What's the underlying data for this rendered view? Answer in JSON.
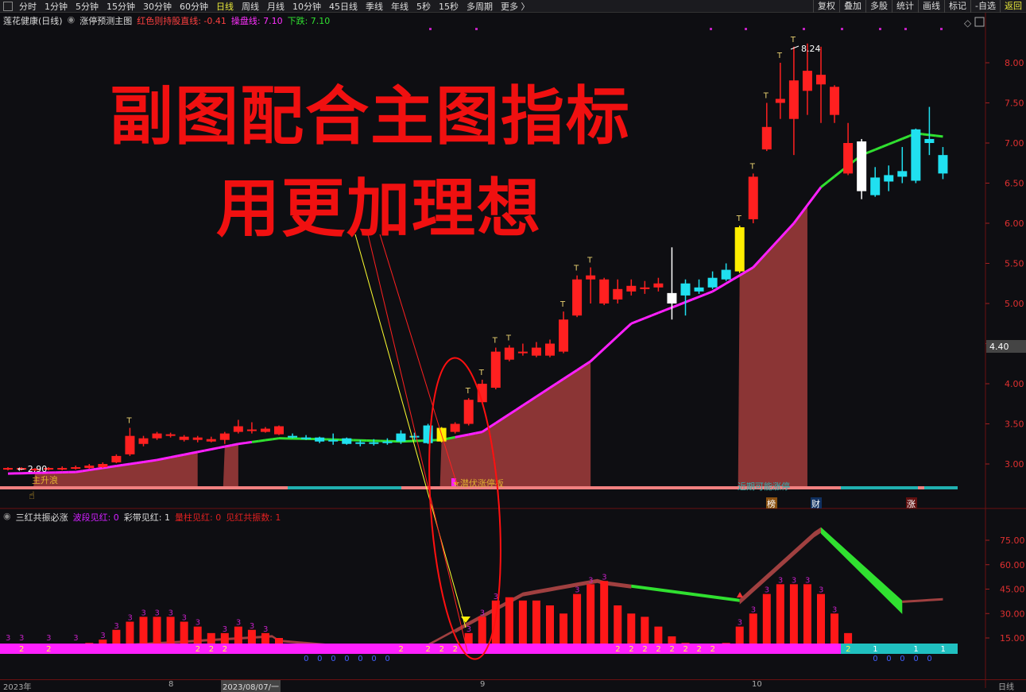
{
  "toolbar": {
    "timeframes": [
      "分时",
      "1分钟",
      "5分钟",
      "15分钟",
      "30分钟",
      "60分钟",
      "日线",
      "周线",
      "月线",
      "10分钟",
      "45日线",
      "季线",
      "年线",
      "5秒",
      "15秒",
      "多周期",
      "更多 〉"
    ],
    "active": "日线",
    "right_buttons": [
      "复权",
      "叠加",
      "多股",
      "统计",
      "画线",
      "标记",
      "-自选",
      "返回"
    ]
  },
  "info": {
    "stock": "莲花健康(日线)",
    "indicator": "涨停预测主图",
    "red_label": "红色则持股直线: -0.41",
    "magenta_label": "操盘线: 7.10",
    "green_label": "下跌: 7.10"
  },
  "sub_info": {
    "name": "三红共振必涨",
    "wave": "波段见红: 0",
    "band": "彩带见红: 1",
    "volume": "量柱见红: 0",
    "count": "见红共振数: 1"
  },
  "overlay": {
    "line1": "副图配合主图指标",
    "line2": "用更加理想"
  },
  "annotations": {
    "low_price": "← 2.90",
    "high_price": "8.24",
    "main_wave": "主升浪",
    "hidden_limit": "★潜伏涨停板",
    "recent_limit": "近期可能涨停",
    "badges": [
      "榜",
      "财",
      "涨"
    ],
    "current_price": "4.40",
    "t_mark": "T"
  },
  "colors": {
    "up": "#ff2020",
    "down": "#20e0f0",
    "magenta": "#ff20ff",
    "green": "#30e030",
    "fill": "#8b3535",
    "yellow": "#ffee00"
  },
  "chart_data": [
    {
      "type": "candlestick",
      "ylim": [
        2.7,
        8.35
      ],
      "yticks": [
        "8.00",
        "7.50",
        "7.00",
        "6.50",
        "6.00",
        "5.50",
        "5.00",
        "4.50",
        "4.00",
        "3.50",
        "3.00"
      ],
      "candles": [
        [
          2.93,
          2.95,
          2.96,
          2.92,
          "r"
        ],
        [
          2.93,
          2.95,
          2.96,
          2.92,
          "r"
        ],
        [
          2.92,
          2.94,
          2.95,
          2.91,
          "r"
        ],
        [
          2.93,
          2.95,
          2.96,
          2.92,
          "r"
        ],
        [
          2.93,
          2.95,
          2.97,
          2.92,
          "r"
        ],
        [
          2.94,
          2.96,
          2.98,
          2.93,
          "r"
        ],
        [
          2.95,
          2.98,
          3.0,
          2.94,
          "r"
        ],
        [
          2.96,
          3.0,
          3.02,
          2.95,
          "r"
        ],
        [
          3.02,
          3.1,
          3.12,
          3.01,
          "r"
        ],
        [
          3.12,
          3.35,
          3.45,
          3.1,
          "r"
        ],
        [
          3.25,
          3.32,
          3.35,
          3.22,
          "r"
        ],
        [
          3.32,
          3.38,
          3.4,
          3.3,
          "r"
        ],
        [
          3.35,
          3.37,
          3.39,
          3.33,
          "r"
        ],
        [
          3.3,
          3.34,
          3.36,
          3.28,
          "r"
        ],
        [
          3.3,
          3.33,
          3.35,
          3.27,
          "r"
        ],
        [
          3.28,
          3.31,
          3.34,
          3.27,
          "r"
        ],
        [
          3.3,
          3.38,
          3.4,
          3.25,
          "r"
        ],
        [
          3.4,
          3.47,
          3.55,
          3.38,
          "r"
        ],
        [
          3.42,
          3.43,
          3.52,
          3.38,
          "r"
        ],
        [
          3.4,
          3.44,
          3.46,
          3.39,
          "r"
        ],
        [
          3.37,
          3.47,
          3.48,
          3.36,
          "r"
        ],
        [
          3.35,
          3.35,
          3.38,
          3.32,
          "c"
        ],
        [
          3.33,
          3.33,
          3.36,
          3.3,
          "c"
        ],
        [
          3.28,
          3.33,
          3.34,
          3.26,
          "c"
        ],
        [
          3.3,
          3.3,
          3.38,
          3.24,
          "c"
        ],
        [
          3.25,
          3.32,
          3.33,
          3.24,
          "c"
        ],
        [
          3.27,
          3.27,
          3.3,
          3.22,
          "c"
        ],
        [
          3.27,
          3.27,
          3.31,
          3.23,
          "c"
        ],
        [
          3.28,
          3.28,
          3.32,
          3.24,
          "c"
        ],
        [
          3.28,
          3.38,
          3.42,
          3.25,
          "c"
        ],
        [
          3.35,
          3.35,
          3.39,
          3.3,
          "c"
        ],
        [
          3.26,
          3.48,
          3.5,
          3.25,
          "c"
        ],
        [
          3.28,
          3.45,
          3.46,
          3.27,
          "y"
        ],
        [
          3.4,
          3.5,
          3.52,
          3.38,
          "r"
        ],
        [
          3.5,
          3.8,
          3.82,
          3.48,
          "r"
        ],
        [
          3.77,
          4.0,
          4.05,
          3.75,
          "r"
        ],
        [
          3.95,
          4.4,
          4.45,
          3.93,
          "r"
        ],
        [
          4.3,
          4.45,
          4.48,
          4.28,
          "r"
        ],
        [
          4.38,
          4.4,
          4.5,
          4.35,
          "r"
        ],
        [
          4.35,
          4.45,
          4.52,
          4.33,
          "r"
        ],
        [
          4.35,
          4.5,
          4.55,
          4.33,
          "r"
        ],
        [
          4.4,
          4.8,
          4.9,
          4.38,
          "r"
        ],
        [
          4.85,
          5.3,
          5.35,
          4.83,
          "r"
        ],
        [
          5.3,
          5.35,
          5.45,
          5.0,
          "r"
        ],
        [
          5.0,
          5.3,
          5.32,
          4.98,
          "r"
        ],
        [
          5.05,
          5.18,
          5.3,
          5.0,
          "r"
        ],
        [
          5.15,
          5.22,
          5.3,
          5.1,
          "r"
        ],
        [
          5.18,
          5.2,
          5.28,
          5.12,
          "r"
        ],
        [
          5.2,
          5.25,
          5.32,
          5.15,
          "r"
        ],
        [
          5.0,
          5.13,
          5.7,
          4.8,
          "w"
        ],
        [
          5.1,
          5.25,
          5.3,
          4.85,
          "c"
        ],
        [
          5.15,
          5.2,
          5.3,
          5.12,
          "c"
        ],
        [
          5.2,
          5.32,
          5.4,
          5.18,
          "c"
        ],
        [
          5.3,
          5.42,
          5.5,
          5.28,
          "c"
        ],
        [
          5.4,
          5.95,
          5.97,
          5.38,
          "y"
        ],
        [
          6.05,
          6.58,
          6.62,
          6.0,
          "r"
        ],
        [
          6.92,
          7.2,
          7.5,
          6.9,
          "r"
        ],
        [
          7.5,
          7.55,
          8.0,
          7.3,
          "r"
        ],
        [
          7.3,
          7.78,
          8.2,
          6.85,
          "r"
        ],
        [
          7.65,
          7.9,
          8.24,
          7.35,
          "r"
        ],
        [
          7.73,
          7.85,
          8.2,
          7.25,
          "r"
        ],
        [
          7.35,
          7.7,
          7.72,
          7.25,
          "r"
        ],
        [
          6.62,
          7.0,
          7.25,
          6.6,
          "r"
        ],
        [
          6.4,
          7.02,
          7.05,
          6.3,
          "w"
        ],
        [
          6.35,
          6.57,
          6.7,
          6.33,
          "c"
        ],
        [
          6.52,
          6.6,
          6.72,
          6.4,
          "c"
        ],
        [
          6.58,
          6.65,
          6.95,
          6.5,
          "c"
        ],
        [
          6.53,
          7.17,
          7.18,
          6.5,
          "c"
        ],
        [
          7.0,
          7.05,
          7.45,
          6.85,
          "c"
        ],
        [
          6.62,
          6.85,
          6.95,
          6.55,
          "c"
        ]
      ],
      "t_marks": [
        9,
        34,
        35,
        36,
        37,
        41,
        42,
        43,
        54,
        55,
        56,
        57,
        58
      ],
      "ma": [
        [
          0,
          2.88
        ],
        [
          5,
          2.9
        ],
        [
          11,
          3.05
        ],
        [
          17,
          3.25
        ],
        [
          20,
          3.32
        ],
        [
          23,
          3.31
        ],
        [
          29,
          3.28
        ],
        [
          32,
          3.3
        ],
        [
          35,
          3.4
        ],
        [
          37,
          3.62
        ],
        [
          40,
          3.95
        ],
        [
          43,
          4.28
        ],
        [
          46,
          4.75
        ],
        [
          49,
          4.95
        ],
        [
          52,
          5.15
        ],
        [
          55,
          5.45
        ],
        [
          58,
          6.0
        ],
        [
          60,
          6.45
        ],
        [
          63,
          6.85
        ],
        [
          67,
          7.12
        ],
        [
          69,
          7.08
        ]
      ],
      "ma_green_ranges": [
        [
          18,
          33
        ],
        [
          60,
          69
        ]
      ],
      "fill_ranges": [
        [
          2,
          14
        ],
        [
          16,
          17
        ],
        [
          32,
          43
        ],
        [
          54,
          59
        ]
      ]
    },
    {
      "type": "bar",
      "ylim": [
        5,
        88
      ],
      "yticks": [
        "75.00",
        "60.00",
        "45.00",
        "30.00",
        "15.00"
      ],
      "bars": [
        8,
        8,
        8,
        10,
        10,
        10,
        12,
        14,
        20,
        25,
        28,
        28,
        28,
        25,
        22,
        18,
        18,
        22,
        20,
        18,
        15,
        0,
        0,
        0,
        0,
        0,
        0,
        0,
        0,
        0,
        0,
        0,
        0,
        0,
        18,
        28,
        38,
        40,
        38,
        38,
        35,
        30,
        42,
        48,
        50,
        35,
        30,
        28,
        22,
        16,
        12,
        10,
        10,
        12,
        22,
        30,
        42,
        48,
        48,
        48,
        42,
        30,
        18,
        0,
        0,
        0,
        0,
        0,
        0,
        0
      ],
      "top_labels": {
        "0": "3",
        "1": "3",
        "3": "3",
        "5": "3",
        "7": "3",
        "8": "3",
        "9": "3",
        "10": "3",
        "11": "3",
        "12": "3",
        "13": "3",
        "14": "3",
        "16": "3",
        "17": "3",
        "18": "3",
        "19": "3",
        "34": "3",
        "35": "3",
        "36": "3",
        "42": "3",
        "43": "3",
        "44": "3",
        "54": "3",
        "55": "3",
        "56": "3",
        "57": "3",
        "58": "3",
        "59": "3",
        "60": "3",
        "61": "3"
      },
      "bottom_labels": {
        "1": "2",
        "3": "2",
        "14": "2",
        "15": "2",
        "16": "2",
        "29": "2",
        "31": "2",
        "32": "2",
        "33": "2",
        "45": "2",
        "46": "2",
        "47": "2",
        "48": "2",
        "49": "2",
        "50": "2",
        "51": "2",
        "52": "2",
        "62": "2",
        "64": "1",
        "67": "1",
        "69": "1"
      },
      "zero_labels": [
        22,
        23,
        24,
        25,
        26,
        27,
        28,
        64,
        65,
        66,
        67,
        68
      ]
    }
  ],
  "x_axis": {
    "labels": [
      "2023年",
      "8",
      "2023/08/07/一",
      "9",
      "10",
      "日线"
    ]
  }
}
